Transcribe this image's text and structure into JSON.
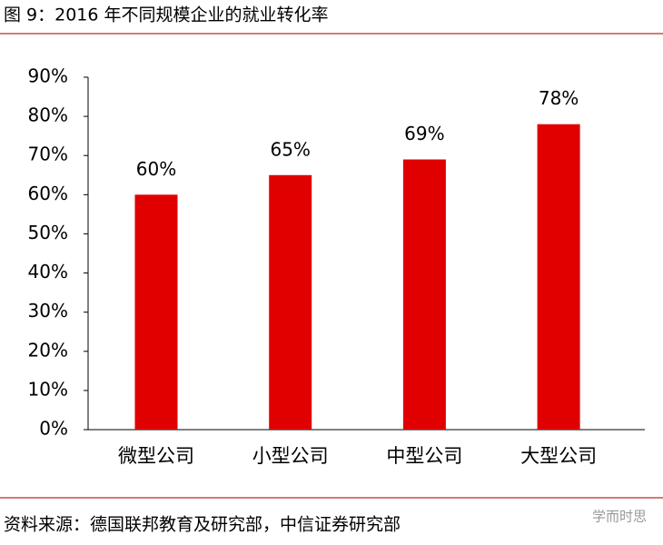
{
  "chart_data": {
    "type": "bar",
    "title": "图 9：2016 年不同规模企业的就业转化率",
    "categories": [
      "微型公司",
      "小型公司",
      "中型公司",
      "大型公司"
    ],
    "values": [
      60,
      65,
      69,
      78
    ],
    "value_labels": [
      "60%",
      "65%",
      "69%",
      "78%"
    ],
    "color": "#e00000",
    "ylim": [
      0,
      90
    ],
    "yticks": [
      {
        "value": 0,
        "label": "0%"
      },
      {
        "value": 10,
        "label": "10%"
      },
      {
        "value": 20,
        "label": "20%"
      },
      {
        "value": 30,
        "label": "30%"
      },
      {
        "value": 40,
        "label": "40%"
      },
      {
        "value": 50,
        "label": "50%"
      },
      {
        "value": 60,
        "label": "60%"
      },
      {
        "value": 70,
        "label": "70%"
      },
      {
        "value": 80,
        "label": "80%"
      },
      {
        "value": 90,
        "label": "90%"
      }
    ],
    "grid": false,
    "source": "资料来源：德国联邦教育及研究部，中信证券研究部",
    "watermark": "学而时思"
  }
}
